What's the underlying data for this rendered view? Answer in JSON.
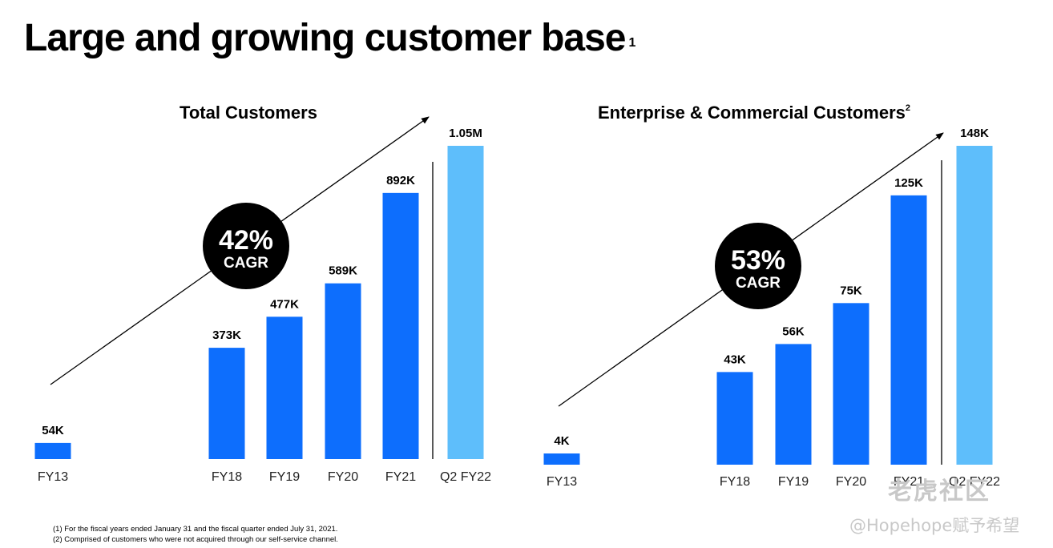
{
  "page": {
    "title": "Large and growing customer base",
    "title_sup": "1",
    "footnotes": [
      "(1)  For the fiscal years ended January 31 and the fiscal quarter ended July 31, 2021.",
      "(2)  Comprised of customers who were not acquired through our self-service channel."
    ],
    "watermark": {
      "line1": "老虎社区",
      "line2": "@Hopehope赋予希望"
    }
  },
  "colors": {
    "bar": "#0D6EFD",
    "bar_highlight": "#5EBEFB",
    "badge": "#000000",
    "text": "#000000"
  },
  "chart_data": [
    {
      "type": "bar",
      "title": "Total Customers",
      "title_sup": "",
      "categories": [
        "FY13",
        "FY18",
        "FY19",
        "FY20",
        "FY21",
        "Q2 FY22"
      ],
      "values": [
        54,
        373,
        477,
        589,
        892,
        1050
      ],
      "value_labels": [
        "54K",
        "373K",
        "477K",
        "589K",
        "892K",
        "1.05M"
      ],
      "units": "thousands",
      "highlight_index": 5,
      "ylim": [
        0,
        1100
      ],
      "badge": {
        "value": "42%",
        "label": "CAGR"
      },
      "grid": false,
      "legend": "none"
    },
    {
      "type": "bar",
      "title": "Enterprise & Commercial Customers",
      "title_sup": "2",
      "categories": [
        "FY13",
        "FY18",
        "FY19",
        "FY20",
        "FY21",
        "Q2 FY22"
      ],
      "values": [
        4,
        43,
        56,
        75,
        125,
        148
      ],
      "value_labels": [
        "4K",
        "43K",
        "56K",
        "75K",
        "125K",
        "148K"
      ],
      "units": "thousands",
      "highlight_index": 5,
      "ylim": [
        0,
        155
      ],
      "badge": {
        "value": "53%",
        "label": "CAGR"
      },
      "grid": false,
      "legend": "none"
    }
  ]
}
